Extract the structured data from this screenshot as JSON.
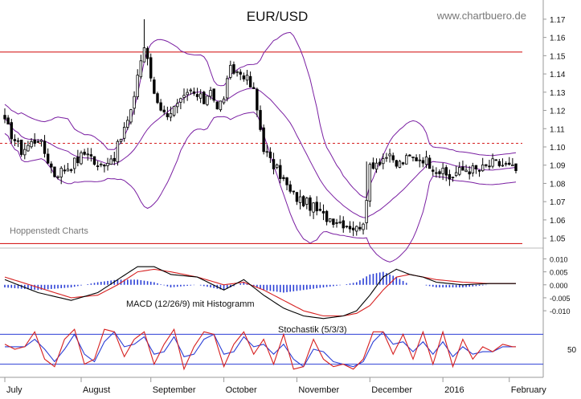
{
  "header": {
    "title": "EUR/USD",
    "watermark": "www.chartbuero.de",
    "source_label": "Hoppenstedt Charts"
  },
  "colors": {
    "candle": "#000000",
    "bollinger": "#7a1fa2",
    "horizontal_lines": "#d62020",
    "macd_line": "#000000",
    "signal_line": "#d62020",
    "histogram": "#2b3fd6",
    "stoch_k": "#d62020",
    "stoch_d": "#2b3fd6",
    "stoch_bounds": "#2b3fd6",
    "grid": "#aaaaaa"
  },
  "chart_data": [
    {
      "type": "candlestick",
      "name": "price",
      "title": "EUR/USD",
      "y_ticks": [
        "1.05",
        "1.06",
        "1.07",
        "1.08",
        "1.09",
        "1.10",
        "1.11",
        "1.12",
        "1.13",
        "1.14",
        "1.15",
        "1.16",
        "1.17"
      ],
      "ylim": [
        1.045,
        1.177
      ],
      "x_months": [
        "July",
        "August",
        "September",
        "October",
        "November",
        "December",
        "2016",
        "February"
      ],
      "timeline": {
        "start_index": 0,
        "end_index": 154,
        "unit": "trading day"
      },
      "month_start_index": [
        0,
        23,
        44,
        66,
        88,
        110,
        132,
        152
      ],
      "close_anchors": {
        "index": [
          0,
          5,
          10,
          15,
          20,
          25,
          28,
          30,
          33,
          36,
          38,
          40,
          42,
          45,
          48,
          52,
          56,
          60,
          62,
          64,
          66,
          68,
          72,
          75,
          78,
          80,
          83,
          86,
          88,
          92,
          96,
          100,
          104,
          106,
          108,
          109,
          110,
          112,
          115,
          118,
          122,
          126,
          130,
          134,
          136,
          139,
          143,
          147,
          151,
          154
        ],
        "close": [
          1.113,
          1.098,
          1.105,
          1.085,
          1.09,
          1.098,
          1.088,
          1.092,
          1.095,
          1.11,
          1.118,
          1.14,
          1.155,
          1.13,
          1.118,
          1.122,
          1.13,
          1.125,
          1.133,
          1.12,
          1.128,
          1.142,
          1.14,
          1.13,
          1.1,
          1.092,
          1.085,
          1.075,
          1.072,
          1.068,
          1.062,
          1.06,
          1.057,
          1.055,
          1.06,
          1.068,
          1.09,
          1.092,
          1.095,
          1.09,
          1.094,
          1.094,
          1.088,
          1.083,
          1.086,
          1.088,
          1.087,
          1.091,
          1.09,
          1.087
        ]
      },
      "reference_lines": [
        1.152,
        1.047
      ],
      "dashed_line": 1.102
    },
    {
      "type": "line",
      "name": "MACD (12/26/9) mit Histogramm",
      "label": "MACD (12/26/9) mit Histogramm",
      "y_ticks": [
        "0.010",
        "0.005",
        "0.000",
        "-0.005",
        "-0.010"
      ],
      "ylim": [
        -0.014,
        0.012
      ],
      "macd_anchors": {
        "index": [
          0,
          10,
          20,
          28,
          34,
          40,
          45,
          50,
          58,
          66,
          72,
          78,
          84,
          90,
          96,
          102,
          106,
          110,
          114,
          118,
          122,
          126,
          130,
          138,
          146,
          154
        ],
        "value": [
          0.002,
          -0.003,
          -0.006,
          -0.003,
          0.002,
          0.007,
          0.007,
          0.004,
          0.003,
          -0.002,
          0.002,
          -0.004,
          -0.009,
          -0.012,
          -0.013,
          -0.012,
          -0.01,
          -0.004,
          0.003,
          0.006,
          0.004,
          0.003,
          0.001,
          0.0,
          0.0005,
          0.0005
        ]
      },
      "signal_anchors": {
        "index": [
          0,
          10,
          20,
          28,
          34,
          40,
          45,
          50,
          58,
          66,
          72,
          78,
          84,
          90,
          96,
          102,
          106,
          110,
          114,
          118,
          122,
          126,
          130,
          138,
          146,
          154
        ],
        "value": [
          0.003,
          -0.001,
          -0.005,
          -0.004,
          0.0,
          0.005,
          0.006,
          0.005,
          0.003,
          0.0,
          0.001,
          -0.002,
          -0.006,
          -0.01,
          -0.012,
          -0.012,
          -0.011,
          -0.008,
          -0.002,
          0.003,
          0.004,
          0.003,
          0.002,
          0.001,
          0.0005,
          0.0005
        ]
      }
    },
    {
      "type": "line",
      "name": "Stochastik (5/3/3)",
      "label": "Stochastik (5/3/3)",
      "y_ticks": [
        "50"
      ],
      "bounds": [
        80,
        20
      ],
      "ylim": [
        0,
        100
      ],
      "k_anchors": {
        "index": [
          0,
          3,
          6,
          9,
          12,
          15,
          18,
          21,
          24,
          27,
          30,
          33,
          36,
          39,
          42,
          45,
          48,
          51,
          54,
          57,
          60,
          63,
          66,
          69,
          72,
          75,
          78,
          81,
          84,
          87,
          90,
          93,
          96,
          99,
          102,
          105,
          108,
          111,
          114,
          117,
          120,
          123,
          126,
          129,
          132,
          135,
          138,
          141,
          144,
          147,
          150,
          153
        ],
        "value": [
          60,
          50,
          55,
          85,
          30,
          15,
          70,
          90,
          20,
          30,
          90,
          85,
          35,
          70,
          85,
          20,
          60,
          90,
          10,
          55,
          85,
          80,
          15,
          60,
          85,
          40,
          70,
          20,
          80,
          10,
          15,
          70,
          30,
          15,
          20,
          10,
          30,
          85,
          85,
          40,
          80,
          30,
          85,
          20,
          85,
          15,
          70,
          30,
          55,
          45,
          60,
          55
        ]
      },
      "d_anchors": {
        "index": [
          0,
          3,
          6,
          9,
          12,
          15,
          18,
          21,
          24,
          27,
          30,
          33,
          36,
          39,
          42,
          45,
          48,
          51,
          54,
          57,
          60,
          63,
          66,
          69,
          72,
          75,
          78,
          81,
          84,
          87,
          90,
          93,
          96,
          99,
          102,
          105,
          108,
          111,
          114,
          117,
          120,
          123,
          126,
          129,
          132,
          135,
          138,
          141,
          144,
          147,
          150,
          153
        ],
        "value": [
          55,
          55,
          55,
          70,
          50,
          25,
          50,
          80,
          40,
          25,
          65,
          85,
          55,
          60,
          75,
          40,
          45,
          75,
          35,
          40,
          70,
          80,
          40,
          45,
          75,
          55,
          60,
          40,
          60,
          30,
          15,
          50,
          45,
          25,
          20,
          15,
          25,
          65,
          85,
          60,
          65,
          45,
          65,
          40,
          65,
          35,
          55,
          40,
          45,
          45,
          55,
          55
        ]
      }
    }
  ]
}
